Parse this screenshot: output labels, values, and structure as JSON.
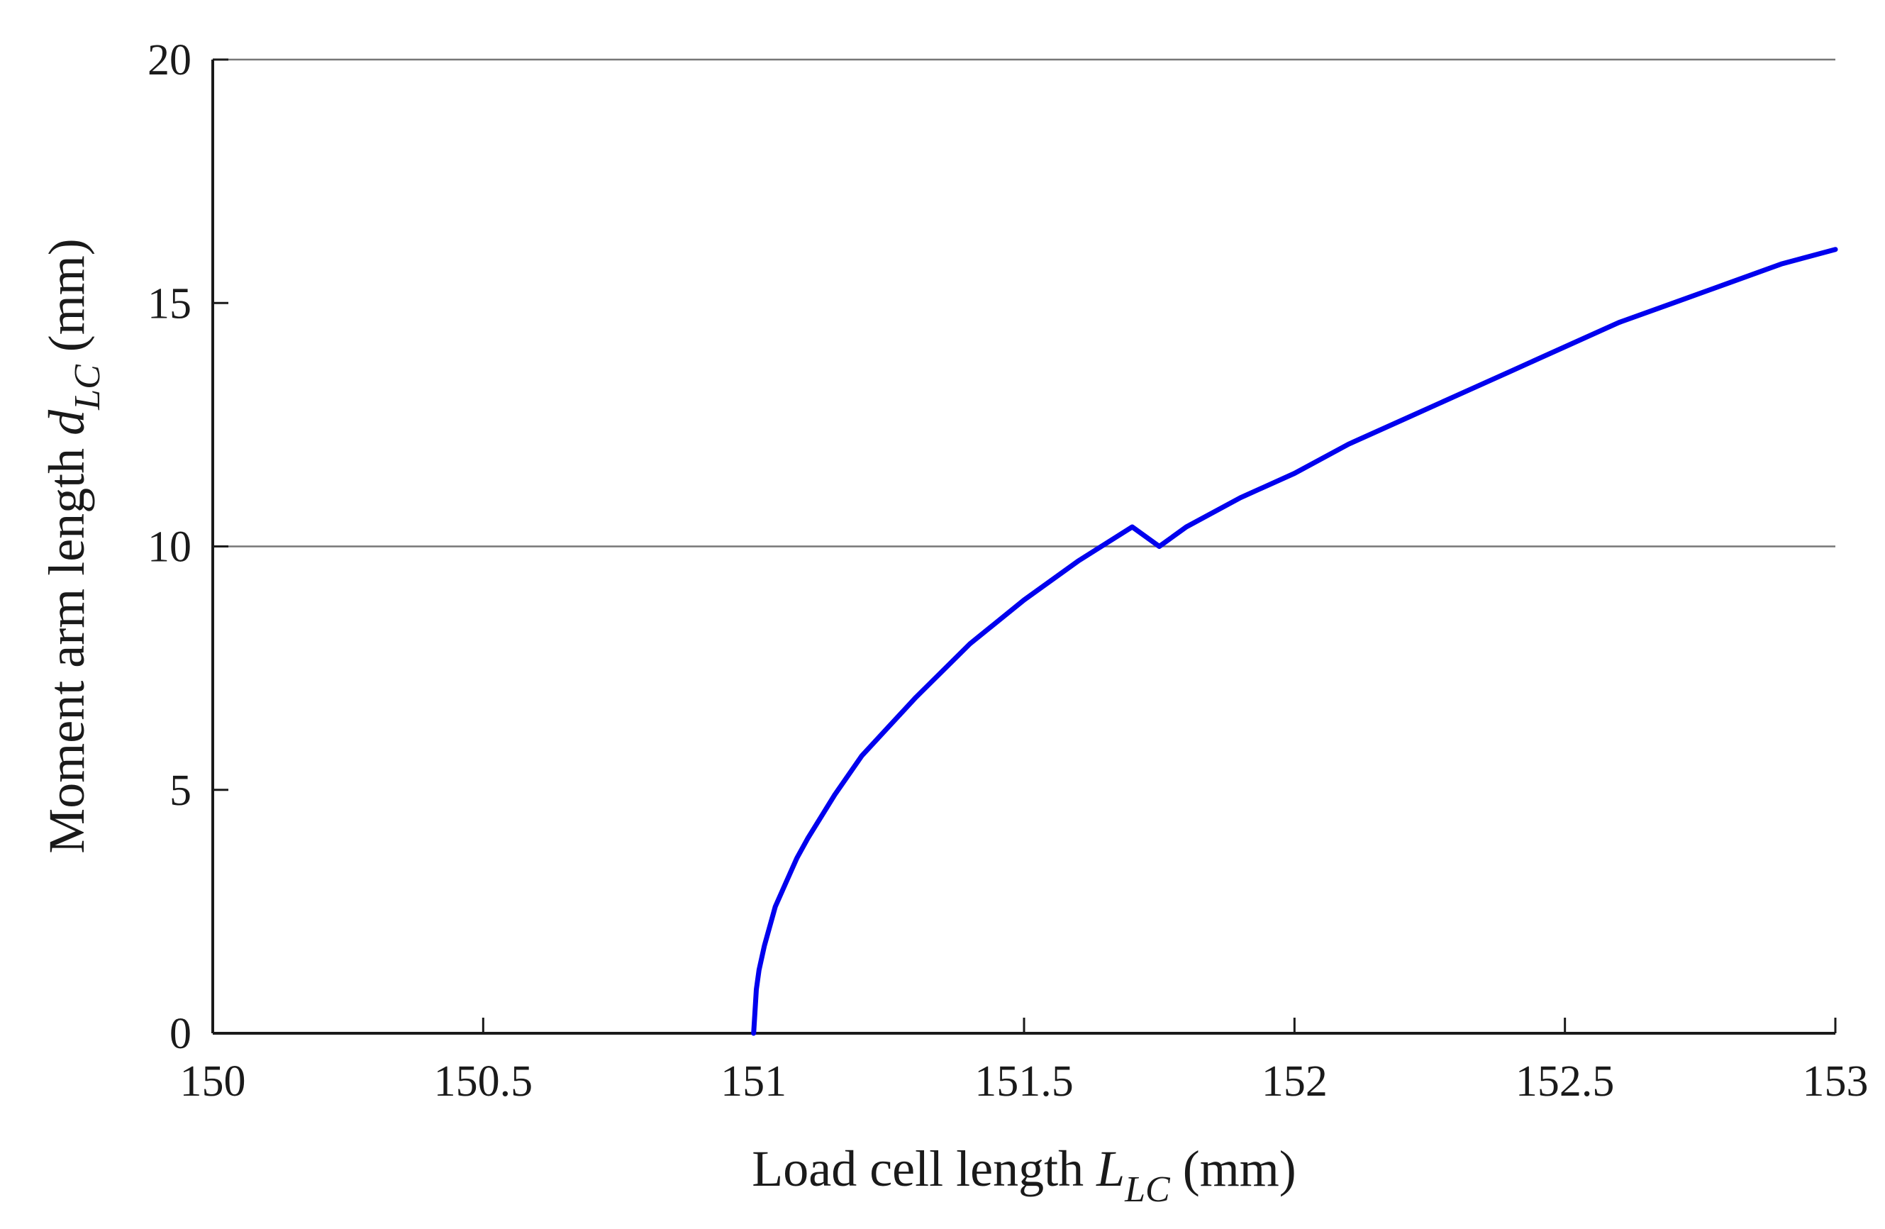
{
  "chart_data": {
    "type": "line",
    "title": "",
    "xlabel": {
      "prefix": "Load cell length ",
      "variable": "L",
      "subscript": "LC",
      "suffix": " (mm)"
    },
    "ylabel": {
      "prefix": "Moment arm length ",
      "variable": "d",
      "subscript": "LC",
      "suffix": " (mm)"
    },
    "xlim": [
      150,
      153
    ],
    "ylim": [
      0,
      20
    ],
    "xticks": [
      150,
      150.5,
      151,
      151.5,
      152,
      152.5,
      153
    ],
    "xtick_labels": [
      "150",
      "150.5",
      "151",
      "151.5",
      "152",
      "152.5",
      "153"
    ],
    "yticks": [
      0,
      5,
      10,
      15,
      20
    ],
    "ytick_labels": [
      "0",
      "5",
      "10",
      "15",
      "20"
    ],
    "gridlines_y": [
      10,
      20
    ],
    "series": [
      {
        "name": "d_LC",
        "color": "#0000ee",
        "x": [
          151.0,
          151.005,
          151.01,
          151.02,
          151.04,
          151.06,
          151.08,
          151.1,
          151.15,
          151.2,
          151.25,
          151.3,
          151.4,
          151.5,
          151.6,
          151.7,
          151.75,
          151.8,
          151.9,
          152.0,
          152.1,
          152.2,
          152.3,
          152.4,
          152.5,
          152.6,
          152.7,
          152.8,
          152.9,
          153.0
        ],
        "y": [
          0.0,
          0.9,
          1.3,
          1.8,
          2.6,
          3.1,
          3.6,
          4.0,
          4.9,
          5.7,
          6.3,
          6.9,
          8.0,
          8.9,
          9.7,
          10.4,
          10.0,
          10.4,
          11.0,
          11.5,
          12.1,
          12.6,
          13.1,
          13.6,
          14.1,
          14.6,
          15.0,
          15.4,
          15.8,
          16.1
        ]
      }
    ]
  }
}
